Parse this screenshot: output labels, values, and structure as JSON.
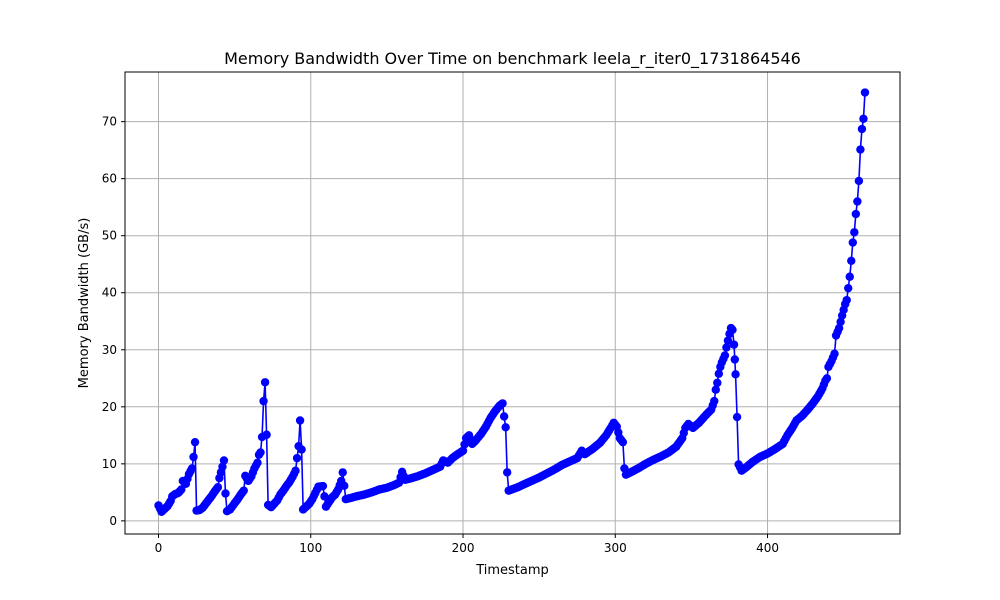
{
  "chart_data": {
    "type": "line",
    "title": "Memory Bandwidth Over Time on benchmark leela_r_iter0_1731864546",
    "xlabel": "Timestamp",
    "ylabel": "Memory Bandwidth (GB/s)",
    "xlim": [
      -22,
      487
    ],
    "ylim": [
      -2.3,
      78.7
    ],
    "xticks": [
      0,
      100,
      200,
      300,
      400
    ],
    "yticks": [
      0,
      10,
      20,
      30,
      40,
      50,
      60,
      70
    ],
    "grid": true,
    "series": [
      {
        "color": "#0000ff",
        "marker": "circle",
        "anchors": [
          [
            0,
            2.7
          ],
          [
            2,
            1.6
          ],
          [
            4,
            2.1
          ],
          [
            6,
            2.6
          ],
          [
            8,
            3.5
          ],
          [
            9,
            4.3
          ],
          [
            11,
            4.7
          ],
          [
            13,
            4.9
          ],
          [
            15,
            5.5
          ],
          [
            16,
            7.0
          ],
          [
            18,
            6.5
          ],
          [
            20,
            8.2
          ],
          [
            22,
            9.2
          ],
          [
            23,
            11.2
          ],
          [
            24,
            13.8
          ],
          [
            25,
            1.8
          ],
          [
            27,
            1.9
          ],
          [
            29,
            2.3
          ],
          [
            31,
            3.0
          ],
          [
            33,
            3.7
          ],
          [
            35,
            4.4
          ],
          [
            37,
            5.2
          ],
          [
            39,
            5.9
          ],
          [
            40,
            7.5
          ],
          [
            42,
            9.5
          ],
          [
            43,
            10.6
          ],
          [
            44,
            4.8
          ],
          [
            45,
            1.7
          ],
          [
            47,
            2.0
          ],
          [
            50,
            3.1
          ],
          [
            52,
            3.8
          ],
          [
            54,
            4.6
          ],
          [
            56,
            5.3
          ],
          [
            57,
            7.9
          ],
          [
            59,
            7.0
          ],
          [
            61,
            7.8
          ],
          [
            63,
            9.2
          ],
          [
            65,
            10.2
          ],
          [
            66,
            11.6
          ],
          [
            67,
            12.0
          ],
          [
            68,
            14.7
          ],
          [
            69,
            21.0
          ],
          [
            70,
            24.3
          ],
          [
            71,
            15.1
          ],
          [
            72,
            2.8
          ],
          [
            74,
            2.4
          ],
          [
            76,
            3.0
          ],
          [
            78,
            3.6
          ],
          [
            80,
            4.6
          ],
          [
            82,
            5.3
          ],
          [
            84,
            6.1
          ],
          [
            86,
            6.8
          ],
          [
            88,
            7.7
          ],
          [
            90,
            8.8
          ],
          [
            91,
            11.0
          ],
          [
            92,
            13.1
          ],
          [
            93,
            17.6
          ],
          [
            94,
            12.5
          ],
          [
            95,
            2.0
          ],
          [
            97,
            2.5
          ],
          [
            99,
            3.0
          ],
          [
            101,
            3.8
          ],
          [
            103,
            4.9
          ],
          [
            105,
            6.0
          ],
          [
            108,
            6.1
          ],
          [
            110,
            2.5
          ],
          [
            112,
            3.3
          ],
          [
            114,
            4.1
          ],
          [
            116,
            4.6
          ],
          [
            118,
            5.5
          ],
          [
            120,
            7.0
          ],
          [
            121,
            8.5
          ],
          [
            123,
            3.8
          ],
          [
            126,
            4.0
          ],
          [
            130,
            4.3
          ],
          [
            135,
            4.6
          ],
          [
            140,
            5.0
          ],
          [
            145,
            5.5
          ],
          [
            150,
            5.8
          ],
          [
            155,
            6.3
          ],
          [
            158,
            6.7
          ],
          [
            160,
            8.6
          ],
          [
            162,
            7.2
          ],
          [
            165,
            7.4
          ],
          [
            170,
            7.8
          ],
          [
            175,
            8.3
          ],
          [
            180,
            8.9
          ],
          [
            185,
            9.5
          ],
          [
            187,
            10.6
          ],
          [
            190,
            10.2
          ],
          [
            193,
            11.0
          ],
          [
            196,
            11.6
          ],
          [
            200,
            12.3
          ],
          [
            202,
            14.5
          ],
          [
            204,
            15.0
          ],
          [
            206,
            13.5
          ],
          [
            208,
            14.0
          ],
          [
            212,
            15.3
          ],
          [
            215,
            16.5
          ],
          [
            218,
            18.0
          ],
          [
            221,
            19.2
          ],
          [
            224,
            20.2
          ],
          [
            226,
            20.6
          ],
          [
            227,
            18.3
          ],
          [
            228,
            16.4
          ],
          [
            229,
            8.5
          ],
          [
            230,
            5.3
          ],
          [
            233,
            5.6
          ],
          [
            236,
            5.9
          ],
          [
            240,
            6.4
          ],
          [
            245,
            7.0
          ],
          [
            250,
            7.6
          ],
          [
            255,
            8.3
          ],
          [
            260,
            9.0
          ],
          [
            265,
            9.8
          ],
          [
            270,
            10.4
          ],
          [
            275,
            11.0
          ],
          [
            278,
            12.3
          ],
          [
            280,
            11.7
          ],
          [
            285,
            12.6
          ],
          [
            290,
            13.7
          ],
          [
            294,
            15.0
          ],
          [
            297,
            16.3
          ],
          [
            299,
            17.2
          ],
          [
            301,
            16.5
          ],
          [
            303,
            14.5
          ],
          [
            305,
            13.8
          ],
          [
            306,
            9.2
          ],
          [
            307,
            8.1
          ],
          [
            310,
            8.5
          ],
          [
            315,
            9.2
          ],
          [
            320,
            10.0
          ],
          [
            325,
            10.7
          ],
          [
            330,
            11.3
          ],
          [
            335,
            12.0
          ],
          [
            340,
            13.0
          ],
          [
            344,
            14.5
          ],
          [
            346,
            16.3
          ],
          [
            348,
            17.0
          ],
          [
            351,
            16.3
          ],
          [
            355,
            17.2
          ],
          [
            360,
            18.7
          ],
          [
            363,
            19.5
          ],
          [
            365,
            21.0
          ],
          [
            366,
            23.0
          ],
          [
            367,
            24.2
          ],
          [
            368,
            25.8
          ],
          [
            369,
            27.0
          ],
          [
            370,
            27.8
          ],
          [
            372,
            29.0
          ],
          [
            373,
            30.4
          ],
          [
            375,
            32.8
          ],
          [
            376,
            33.8
          ],
          [
            377,
            33.5
          ],
          [
            378,
            30.9
          ],
          [
            378.5,
            28.3
          ],
          [
            379,
            25.7
          ],
          [
            380,
            18.2
          ],
          [
            381,
            9.9
          ],
          [
            383,
            8.8
          ],
          [
            386,
            9.4
          ],
          [
            390,
            10.3
          ],
          [
            395,
            11.2
          ],
          [
            400,
            11.8
          ],
          [
            405,
            12.6
          ],
          [
            410,
            13.5
          ],
          [
            413,
            15.0
          ],
          [
            416,
            16.2
          ],
          [
            419,
            17.6
          ],
          [
            423,
            18.5
          ],
          [
            427,
            19.7
          ],
          [
            430,
            20.7
          ],
          [
            433,
            21.8
          ],
          [
            436,
            23.2
          ],
          [
            438,
            24.6
          ],
          [
            439,
            25.0
          ],
          [
            440,
            27.0
          ],
          [
            442,
            28.0
          ],
          [
            444,
            29.3
          ],
          [
            445,
            32.5
          ],
          [
            447,
            33.8
          ],
          [
            449,
            36.0
          ],
          [
            451,
            38.0
          ],
          [
            452,
            38.7
          ],
          [
            453,
            40.8
          ],
          [
            454,
            42.8
          ],
          [
            455,
            45.6
          ],
          [
            456,
            48.8
          ],
          [
            457,
            50.6
          ],
          [
            458,
            53.8
          ],
          [
            459,
            56.0
          ],
          [
            460,
            59.6
          ],
          [
            461,
            65.1
          ],
          [
            462,
            68.7
          ],
          [
            463,
            70.5
          ],
          [
            464,
            75.1
          ]
        ]
      }
    ]
  }
}
